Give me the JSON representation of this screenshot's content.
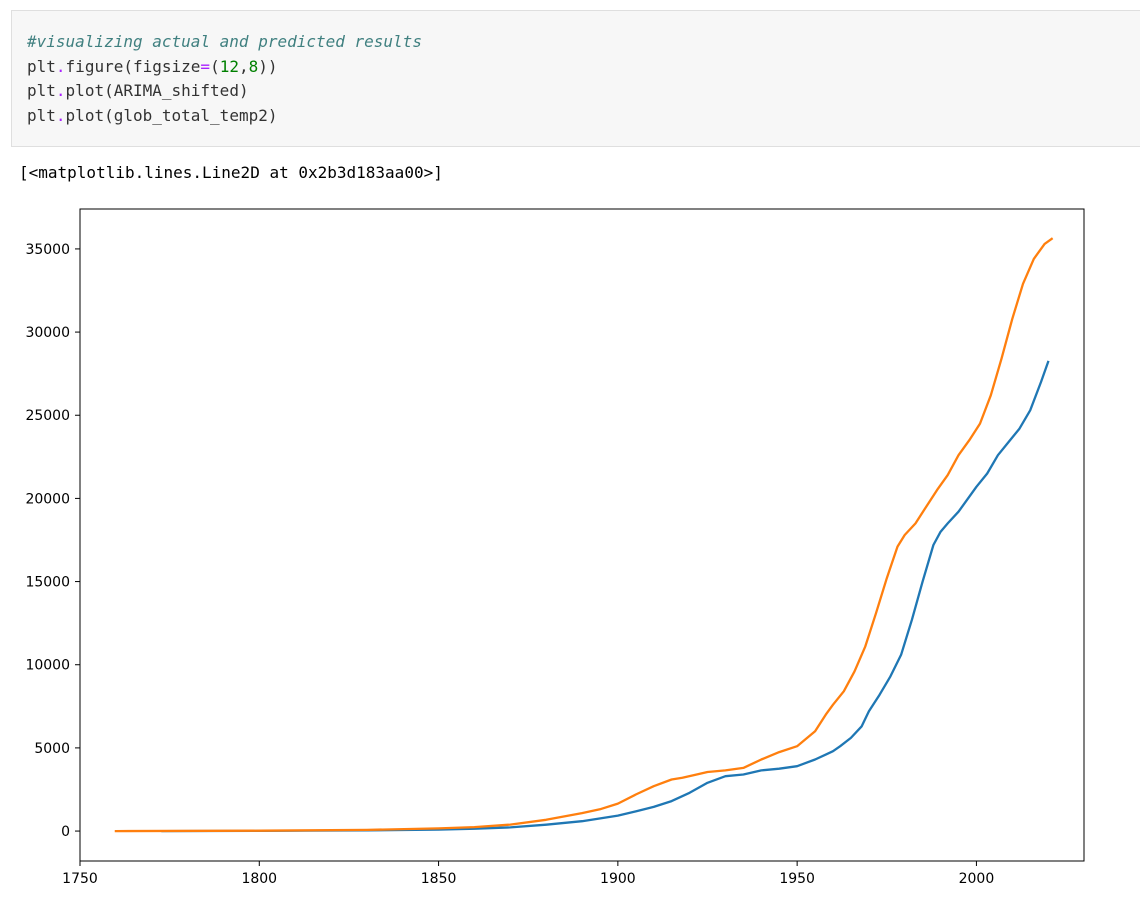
{
  "code_cell": {
    "comment": "#visualizing actual and predicted results",
    "lines": [
      {
        "obj": "plt",
        "fn": "figure",
        "arg_name": "figsize",
        "arg_op": "=",
        "arg_open": "(",
        "num1": "12",
        "comma": ",",
        "num2": "8",
        "arg_close": "))"
      },
      {
        "obj": "plt",
        "fn": "plot",
        "arg": "ARIMA_shifted"
      },
      {
        "obj": "plt",
        "fn": "plot",
        "arg": "glob_total_temp2"
      }
    ]
  },
  "output": {
    "text": "[<matplotlib.lines.Line2D at 0x2b3d183aa00>]"
  },
  "chart_data": {
    "type": "line",
    "title": "",
    "xlabel": "",
    "ylabel": "",
    "xlim": [
      1750,
      2030
    ],
    "ylim": [
      -1800,
      37400
    ],
    "xticks": [
      1750,
      1800,
      1850,
      1900,
      1950,
      2000
    ],
    "xtick_labels": [
      "1750",
      "1800",
      "1850",
      "1900",
      "1950",
      "2000"
    ],
    "yticks": [
      0,
      5000,
      10000,
      15000,
      20000,
      25000,
      30000,
      35000
    ],
    "ytick_labels": [
      "0",
      "5000",
      "10000",
      "15000",
      "20000",
      "25000",
      "30000",
      "35000"
    ],
    "grid": false,
    "legend": false,
    "series": [
      {
        "color": "#1f77b4",
        "x": [
          1773,
          1800,
          1830,
          1850,
          1860,
          1870,
          1880,
          1890,
          1900,
          1905,
          1910,
          1915,
          1920,
          1925,
          1930,
          1935,
          1940,
          1945,
          1950,
          1955,
          1958,
          1960,
          1962,
          1965,
          1968,
          1970,
          1973,
          1976,
          1979,
          1982,
          1985,
          1988,
          1990,
          1992,
          1995,
          1998,
          2000,
          2003,
          2006,
          2009,
          2012,
          2015,
          2018,
          2020
        ],
        "y": [
          0,
          10,
          40,
          90,
          140,
          220,
          380,
          590,
          930,
          1180,
          1450,
          1800,
          2300,
          2900,
          3300,
          3400,
          3650,
          3750,
          3900,
          4300,
          4600,
          4800,
          5100,
          5600,
          6300,
          7200,
          8200,
          9300,
          10600,
          12700,
          15000,
          17200,
          18000,
          18500,
          19200,
          20100,
          20700,
          21500,
          22600,
          23400,
          24200,
          25300,
          27000,
          28200
        ]
      },
      {
        "color": "#ff7f0e",
        "x": [
          1760,
          1800,
          1830,
          1850,
          1860,
          1870,
          1880,
          1890,
          1895,
          1900,
          1905,
          1910,
          1915,
          1918,
          1922,
          1925,
          1930,
          1935,
          1940,
          1945,
          1950,
          1955,
          1958,
          1960,
          1963,
          1966,
          1969,
          1972,
          1975,
          1978,
          1980,
          1983,
          1986,
          1989,
          1992,
          1995,
          1998,
          2001,
          2004,
          2007,
          2010,
          2013,
          2016,
          2019,
          2021
        ],
        "y": [
          0,
          20,
          70,
          160,
          240,
          390,
          680,
          1080,
          1310,
          1650,
          2200,
          2700,
          3100,
          3200,
          3400,
          3550,
          3650,
          3800,
          4300,
          4750,
          5100,
          6000,
          7000,
          7600,
          8400,
          9600,
          11100,
          13100,
          15200,
          17100,
          17800,
          18500,
          19500,
          20500,
          21400,
          22600,
          23500,
          24500,
          26200,
          28400,
          30800,
          32900,
          34400,
          35300,
          35600
        ]
      }
    ]
  }
}
